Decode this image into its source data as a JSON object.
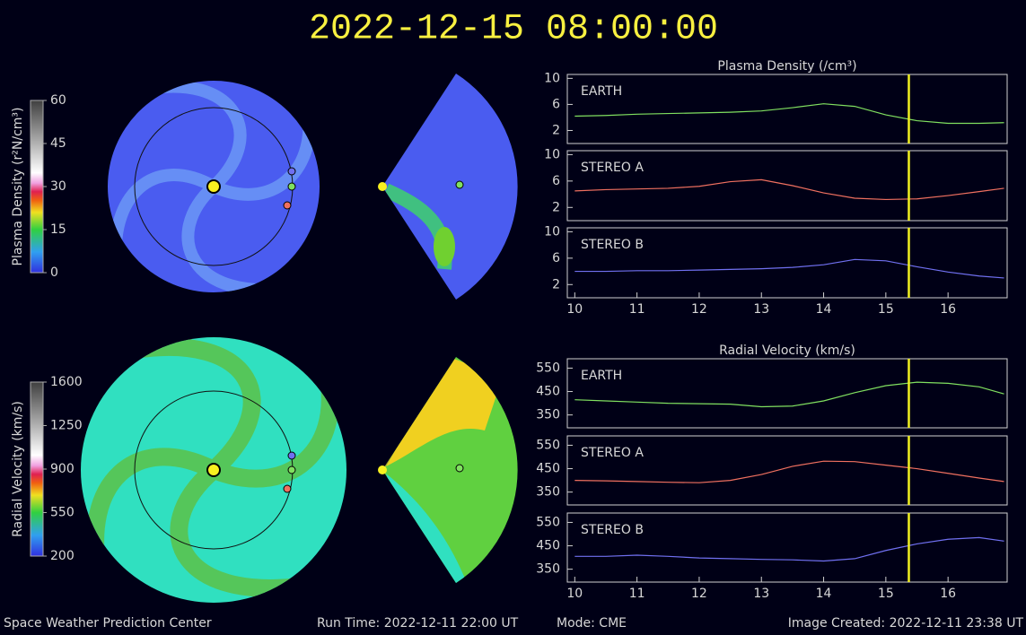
{
  "title": "2022-12-15  08:00:00",
  "colorbars": [
    {
      "label": "Plasma Density (r²N/cm³)",
      "lim": [
        0,
        60
      ],
      "ticks": [
        0,
        15,
        30,
        45,
        60
      ]
    },
    {
      "label": "Radial Velocity (km/s)",
      "lim": [
        200,
        1600
      ],
      "ticks": [
        200,
        550,
        900,
        1250,
        1600
      ]
    }
  ],
  "footer": {
    "center": "Space Weather Prediction Center",
    "run_time": "Run Time: 2022-12-11 22:00 UT",
    "mode": "Mode: CME",
    "created": "Image Created: 2022-12-11 23:38 UT"
  },
  "chart_data": [
    {
      "type": "line",
      "title": "Plasma Density (/cm³)",
      "x": [
        10,
        10.5,
        11,
        11.5,
        12,
        12.5,
        13,
        13.5,
        14,
        14.5,
        15,
        15.5,
        16,
        16.5,
        16.9
      ],
      "xlim": [
        9.88,
        16.95
      ],
      "ylim": [
        0,
        10.6
      ],
      "yticks": [
        2,
        6,
        10
      ],
      "marker_x": 15.37,
      "marker_color": "#f0f020",
      "series": [
        {
          "name": "EARTH",
          "color": "#80e060",
          "values": [
            4.2,
            4.3,
            4.5,
            4.6,
            4.7,
            4.8,
            5.0,
            5.5,
            6.1,
            5.7,
            4.4,
            3.5,
            3.1,
            3.1,
            3.2
          ]
        }
      ]
    },
    {
      "type": "line",
      "x": [
        10,
        10.5,
        11,
        11.5,
        12,
        12.5,
        13,
        13.5,
        14,
        14.5,
        15,
        15.5,
        16,
        16.5,
        16.9
      ],
      "xlim": [
        9.88,
        16.95
      ],
      "ylim": [
        0,
        10.6
      ],
      "yticks": [
        2,
        6,
        10
      ],
      "marker_x": 15.37,
      "marker_color": "#f0f020",
      "series": [
        {
          "name": "STEREO A",
          "color": "#f07060",
          "values": [
            4.5,
            4.7,
            4.8,
            4.9,
            5.2,
            5.9,
            6.2,
            5.3,
            4.2,
            3.4,
            3.2,
            3.3,
            3.8,
            4.4,
            4.9
          ]
        }
      ]
    },
    {
      "type": "line",
      "x": [
        10,
        10.5,
        11,
        11.5,
        12,
        12.5,
        13,
        13.5,
        14,
        14.5,
        15,
        15.5,
        16,
        16.5,
        16.9
      ],
      "xlim": [
        9.88,
        16.95
      ],
      "ylim": [
        0,
        10.6
      ],
      "yticks": [
        2,
        6,
        10
      ],
      "xticks": [
        10,
        11,
        12,
        13,
        14,
        15,
        16
      ],
      "marker_x": 15.37,
      "marker_color": "#f0f020",
      "series": [
        {
          "name": "STEREO B",
          "color": "#7070f0",
          "values": [
            4.0,
            4.0,
            4.1,
            4.1,
            4.2,
            4.3,
            4.4,
            4.6,
            5.0,
            5.8,
            5.6,
            4.7,
            3.9,
            3.3,
            3.0
          ]
        }
      ]
    },
    {
      "type": "line",
      "title": "Radial Velocity (km/s)",
      "x": [
        10,
        10.5,
        11,
        11.5,
        12,
        12.5,
        13,
        13.5,
        14,
        14.5,
        15,
        15.5,
        16,
        16.5,
        16.9
      ],
      "xlim": [
        9.88,
        16.95
      ],
      "ylim": [
        295,
        590
      ],
      "yticks": [
        350,
        450,
        550
      ],
      "marker_x": 15.37,
      "marker_color": "#f0f020",
      "series": [
        {
          "name": "EARTH",
          "color": "#80e060",
          "values": [
            415,
            410,
            405,
            400,
            398,
            396,
            385,
            388,
            410,
            445,
            475,
            490,
            485,
            470,
            440
          ]
        }
      ]
    },
    {
      "type": "line",
      "x": [
        10,
        10.5,
        11,
        11.5,
        12,
        12.5,
        13,
        13.5,
        14,
        14.5,
        15,
        15.5,
        16,
        16.5,
        16.9
      ],
      "xlim": [
        9.88,
        16.95
      ],
      "ylim": [
        295,
        590
      ],
      "yticks": [
        350,
        450,
        550
      ],
      "marker_x": 15.37,
      "marker_color": "#f0f020",
      "series": [
        {
          "name": "STEREO A",
          "color": "#f07060",
          "values": [
            400,
            398,
            395,
            392,
            390,
            400,
            425,
            460,
            482,
            480,
            465,
            450,
            430,
            410,
            395
          ]
        }
      ]
    },
    {
      "type": "line",
      "x": [
        10,
        10.5,
        11,
        11.5,
        12,
        12.5,
        13,
        13.5,
        14,
        14.5,
        15,
        15.5,
        16,
        16.5,
        16.9
      ],
      "xlim": [
        9.88,
        16.95
      ],
      "ylim": [
        295,
        590
      ],
      "yticks": [
        350,
        450,
        550
      ],
      "xticks": [
        10,
        11,
        12,
        13,
        14,
        15,
        16
      ],
      "marker_x": 15.37,
      "marker_color": "#f0f020",
      "series": [
        {
          "name": "STEREO B",
          "color": "#7070f0",
          "values": [
            405,
            405,
            410,
            405,
            398,
            395,
            392,
            390,
            385,
            395,
            430,
            458,
            478,
            485,
            470
          ]
        }
      ]
    }
  ]
}
